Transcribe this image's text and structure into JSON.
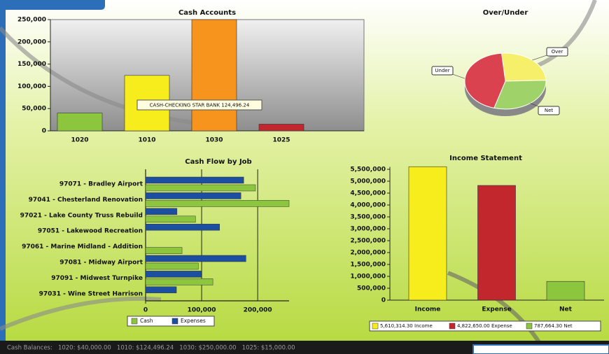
{
  "chart_data": [
    {
      "type": "bar",
      "title": "Cash Accounts",
      "categories": [
        "1020",
        "1010",
        "1030",
        "1025"
      ],
      "values": [
        40000,
        124496.24,
        250000,
        15000
      ],
      "colors": [
        "#8cc63f",
        "#f7ec1c",
        "#f7941d",
        "#c1272d"
      ],
      "ylim": [
        0,
        250000
      ],
      "yticks": [
        0,
        {
          "value": 50000,
          "label": "50,000"
        },
        {
          "value": 100000,
          "label": "100,000"
        },
        {
          "value": 150000,
          "label": "150,000"
        },
        {
          "value": 200000,
          "label": "200,000"
        },
        {
          "value": 250000,
          "label": "250,000"
        }
      ],
      "annotation": "CASH-CHECKING STAR BANK 124,496.24"
    },
    {
      "type": "pie",
      "title": "Over/Under",
      "categories": [
        "Over",
        "Net",
        "Under"
      ],
      "values": [
        26,
        30,
        44
      ],
      "colors": [
        "#f5ef6a",
        "#9fd36a",
        "#d9424e"
      ]
    },
    {
      "type": "bar",
      "orientation": "horizontal",
      "title": "Cash Flow by Job",
      "categories": [
        "97071 - Bradley Airport",
        "97041 - Chesterland Renovation",
        "97021 - Lake County Truss Rebuild",
        "97051 - Lakewood Recreation",
        "97061 - Marine Midland - Addition",
        "97081 - Midway Airport",
        "97091 - Midwest Turnpike",
        "97031 - Wine Street Harrison"
      ],
      "series": [
        {
          "name": "Cash",
          "color": "#8cc63f",
          "values": [
            196000,
            256000,
            89000,
            null,
            65000,
            94000,
            120000,
            null
          ]
        },
        {
          "name": "Expenses",
          "color": "#1c4fa0",
          "values": [
            175000,
            170000,
            56000,
            132000,
            null,
            179000,
            99000,
            55000
          ]
        }
      ],
      "xlim": [
        0,
        256000
      ],
      "xticks": [
        0,
        {
          "value": 100000,
          "label": "100,000"
        },
        {
          "value": 200000,
          "label": "200,000"
        }
      ],
      "grid": true
    },
    {
      "type": "bar",
      "title": "Income Statement",
      "categories": [
        "Income",
        "Expense",
        "Net"
      ],
      "values": [
        5610314.3,
        4822650,
        787664.3
      ],
      "value_labels": [
        "5,610,314.30",
        "4,822,650.00",
        "787,664.30"
      ],
      "colors": [
        "#f7ec1c",
        "#c1272d",
        "#8cc63f"
      ],
      "ylim": [
        0,
        5600000
      ],
      "yticks": [
        0,
        {
          "value": 500000,
          "label": "500,000"
        },
        {
          "value": 1000000,
          "label": "1,000,000"
        },
        {
          "value": 1500000,
          "label": "1,500,000"
        },
        {
          "value": 2000000,
          "label": "2,000,000"
        },
        {
          "value": 2500000,
          "label": "2,500,000"
        },
        {
          "value": 3000000,
          "label": "3,000,000"
        },
        {
          "value": 3500000,
          "label": "3,500,000"
        },
        {
          "value": 4000000,
          "label": "4,000,000"
        },
        {
          "value": 4500000,
          "label": "4,500,000"
        },
        {
          "value": 5000000,
          "label": "5,000,000"
        },
        {
          "value": 5500000,
          "label": "5,500,000"
        }
      ]
    }
  ],
  "status_bar": {
    "text": "Cash Balances:   1020: $40,000.00   1010: $124,496.24   1030: $250,000.00   1025: $15,000.00"
  }
}
